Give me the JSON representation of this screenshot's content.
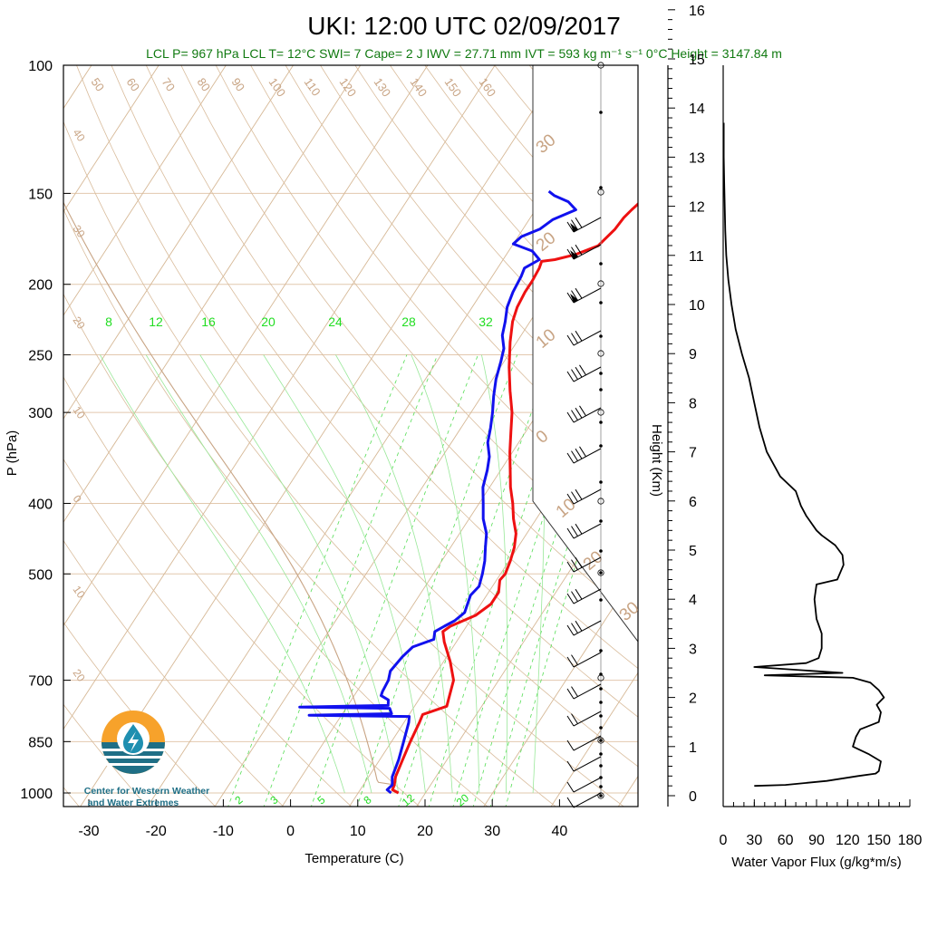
{
  "title": "UKI: 12:00 UTC 02/09/2017",
  "stats_line": "LCL P= 967 hPa  LCL T= 12°C  SWI= 7  Cape= 2 J  IWV = 27.71 mm  IVT = 593 kg m⁻¹ s⁻¹  0°C Height = 3147.84 m",
  "logo": {
    "line1": "Center for Western Weather",
    "line2": "and Water Extremes"
  },
  "chart_data": [
    {
      "type": "line",
      "title": "UKI: 12:00 UTC 02/09/2017",
      "xlabel": "Temperature (C)",
      "ylabel": "P (hPa)",
      "xlim": [
        -33,
        52
      ],
      "ylim": [
        1050,
        100
      ],
      "y_scale": "log",
      "x_ticks": [
        -30,
        -20,
        -10,
        0,
        10,
        20,
        30,
        40
      ],
      "y_ticks": [
        100,
        150,
        200,
        250,
        300,
        400,
        500,
        700,
        850,
        1000
      ],
      "isotherm_labels": [
        50,
        60,
        70,
        80,
        90,
        100,
        110,
        120,
        130,
        140,
        150,
        160,
        40,
        30,
        20,
        10,
        0,
        10,
        20
      ],
      "isotherm_right_labels": [
        30,
        20,
        10,
        0,
        10,
        20,
        30
      ],
      "mixing_ratio_labels_top": [
        8,
        12,
        16,
        20,
        24,
        28,
        32
      ],
      "mixing_ratio_labels_bottom": [
        2,
        3,
        5,
        8,
        12,
        20
      ],
      "series": [
        {
          "name": "Temperature",
          "color": "#ee1111",
          "points": [
            [
              16.0,
              1000
            ],
            [
              14.8,
              990
            ],
            [
              14.6,
              975
            ],
            [
              14.0,
              950
            ],
            [
              13.4,
              900
            ],
            [
              12.8,
              850
            ],
            [
              12.3,
              800
            ],
            [
              12.0,
              780
            ],
            [
              14.8,
              760
            ],
            [
              14.3,
              740
            ],
            [
              13.3,
              700
            ],
            [
              11.0,
              660
            ],
            [
              8.2,
              620
            ],
            [
              7.0,
              600
            ],
            [
              7.6,
              590
            ],
            [
              10.3,
              570
            ],
            [
              11.5,
              550
            ],
            [
              11.5,
              530
            ],
            [
              10.5,
              510
            ],
            [
              10.7,
              500
            ],
            [
              10.2,
              480
            ],
            [
              9.5,
              460
            ],
            [
              8.4,
              440
            ],
            [
              6.6,
              420
            ],
            [
              5.0,
              400
            ],
            [
              3.1,
              380
            ],
            [
              1.4,
              360
            ],
            [
              -0.4,
              340
            ],
            [
              -2.1,
              320
            ],
            [
              -3.9,
              300
            ],
            [
              -6.3,
              280
            ],
            [
              -8.7,
              260
            ],
            [
              -11.0,
              240
            ],
            [
              -12.6,
              225
            ],
            [
              -13.3,
              215
            ],
            [
              -13.6,
              205
            ],
            [
              -13.6,
              198
            ],
            [
              -13.8,
              190
            ],
            [
              -14.1,
              186
            ],
            [
              -12.3,
              185
            ],
            [
              -9.7,
              182
            ],
            [
              -7.2,
              177
            ],
            [
              -6.7,
              172
            ],
            [
              -6.3,
              168
            ],
            [
              -6.1,
              162
            ],
            [
              -5.7,
              158
            ],
            [
              -5.3,
              155
            ],
            [
              -4.7,
              152
            ],
            [
              -4.4,
              150
            ]
          ]
        },
        {
          "name": "Dewpoint",
          "color": "#1111ee",
          "points": [
            [
              14.9,
              1000
            ],
            [
              14.0,
              990
            ],
            [
              14.3,
              975
            ],
            [
              13.5,
              950
            ],
            [
              12.8,
              900
            ],
            [
              11.8,
              850
            ],
            [
              10.7,
              800
            ],
            [
              10.2,
              785
            ],
            [
              -4.8,
              782
            ],
            [
              7.3,
              778
            ],
            [
              6.5,
              765
            ],
            [
              -7.0,
              762
            ],
            [
              6.0,
              758
            ],
            [
              5.5,
              745
            ],
            [
              4.0,
              735
            ],
            [
              3.8,
              725
            ],
            [
              3.6,
              700
            ],
            [
              3.0,
              680
            ],
            [
              3.4,
              650
            ],
            [
              4.0,
              630
            ],
            [
              6.4,
              615
            ],
            [
              5.8,
              600
            ],
            [
              6.7,
              590
            ],
            [
              7.7,
              580
            ],
            [
              8.4,
              565
            ],
            [
              8.0,
              550
            ],
            [
              7.6,
              535
            ],
            [
              8.0,
              520
            ],
            [
              7.3,
              500
            ],
            [
              6.4,
              480
            ],
            [
              5.2,
              460
            ],
            [
              4.0,
              440
            ],
            [
              2.1,
              420
            ],
            [
              0.6,
              400
            ],
            [
              -1.0,
              380
            ],
            [
              -2.0,
              360
            ],
            [
              -3.0,
              345
            ],
            [
              -4.6,
              330
            ],
            [
              -5.6,
              315
            ],
            [
              -6.8,
              300
            ],
            [
              -8.2,
              285
            ],
            [
              -9.5,
              270
            ],
            [
              -10.5,
              255
            ],
            [
              -11.3,
              245
            ],
            [
              -12.8,
              235
            ],
            [
              -13.7,
              225
            ],
            [
              -14.8,
              215
            ],
            [
              -15.4,
              205
            ],
            [
              -15.7,
              195
            ],
            [
              -16.0,
              190
            ],
            [
              -14.6,
              185
            ],
            [
              -16.5,
              180
            ],
            [
              -20.0,
              176
            ],
            [
              -19.5,
              172
            ],
            [
              -17.5,
              168
            ],
            [
              -16.5,
              163
            ],
            [
              -14.0,
              158
            ],
            [
              -15.9,
              154
            ],
            [
              -18.6,
              151
            ],
            [
              -19.8,
              149
            ]
          ]
        }
      ]
    },
    {
      "type": "line",
      "title": "",
      "xlabel": "Water Vapor Flux (g/kg*m/s)",
      "ylabel": "Height (Km)",
      "xlim": [
        0,
        180
      ],
      "ylim": [
        -0.2,
        16.5
      ],
      "x_ticks": [
        0,
        30,
        60,
        90,
        120,
        150,
        180
      ],
      "y_ticks": [
        0,
        1,
        2,
        3,
        4,
        5,
        6,
        7,
        8,
        9,
        10,
        11,
        12,
        13,
        14,
        15,
        16
      ],
      "series": [
        {
          "name": "Water Vapor Flux",
          "color": "#000000",
          "points": [
            [
              30,
              0.2
            ],
            [
              60,
              0.22
            ],
            [
              100,
              0.3
            ],
            [
              130,
              0.4
            ],
            [
              147,
              0.45
            ],
            [
              150,
              0.5
            ],
            [
              152,
              0.7
            ],
            [
              140,
              0.85
            ],
            [
              125,
              1.0
            ],
            [
              128,
              1.2
            ],
            [
              132,
              1.35
            ],
            [
              150,
              1.5
            ],
            [
              152,
              1.7
            ],
            [
              148,
              1.85
            ],
            [
              155,
              2.0
            ],
            [
              150,
              2.15
            ],
            [
              142,
              2.3
            ],
            [
              125,
              2.4
            ],
            [
              40,
              2.45
            ],
            [
              115,
              2.5
            ],
            [
              30,
              2.62
            ],
            [
              80,
              2.7
            ],
            [
              92,
              2.8
            ],
            [
              95,
              3.0
            ],
            [
              95,
              3.3
            ],
            [
              90,
              3.6
            ],
            [
              88,
              4.0
            ],
            [
              90,
              4.3
            ],
            [
              110,
              4.4
            ],
            [
              116,
              4.7
            ],
            [
              115,
              4.9
            ],
            [
              108,
              5.1
            ],
            [
              95,
              5.3
            ],
            [
              90,
              5.4
            ],
            [
              80,
              5.7
            ],
            [
              75,
              5.9
            ],
            [
              70,
              6.2
            ],
            [
              55,
              6.5
            ],
            [
              42,
              7.0
            ],
            [
              35,
              7.5
            ],
            [
              30,
              8.0
            ],
            [
              25,
              8.5
            ],
            [
              18,
              9.0
            ],
            [
              12,
              9.5
            ],
            [
              8,
              10.0
            ],
            [
              5,
              10.5
            ],
            [
              3,
              11.0
            ],
            [
              2,
              11.5
            ],
            [
              1.5,
              12.0
            ],
            [
              1,
              12.5
            ],
            [
              0.5,
              13.0
            ],
            [
              0.5,
              13.7
            ]
          ]
        }
      ]
    }
  ]
}
